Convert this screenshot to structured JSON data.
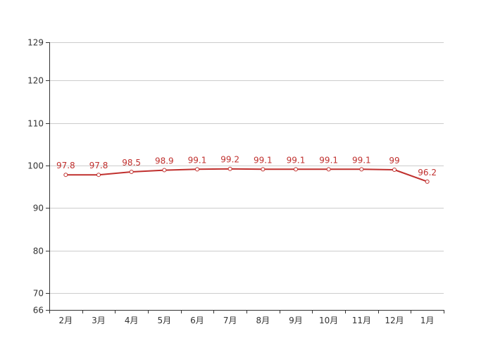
{
  "chart_data": {
    "type": "line",
    "title": "",
    "xlabel": "",
    "ylabel": "",
    "categories": [
      "2月",
      "3月",
      "4月",
      "5月",
      "6月",
      "7月",
      "8月",
      "9月",
      "10月",
      "11月",
      "12月",
      "1月"
    ],
    "series": [
      {
        "values": [
          97.8,
          97.8,
          98.5,
          98.9,
          99.1,
          99.2,
          99.1,
          99.1,
          99.1,
          99.1,
          99,
          96.2
        ],
        "data_labels": [
          "97.8",
          "97.8",
          "98.5",
          "98.9",
          "99.1",
          "99.2",
          "99.1",
          "99.1",
          "99.1",
          "99.1",
          "99",
          "96.2"
        ],
        "color": "#c0302e"
      }
    ],
    "ylim": [
      66,
      129
    ],
    "yticks": [
      66,
      70,
      80,
      90,
      100,
      110,
      120,
      129
    ],
    "ytick_labels": [
      "66",
      "70",
      "80",
      "90",
      "100",
      "110",
      "120",
      "129"
    ],
    "grid": true,
    "legend": "none",
    "colors": {
      "line": "#c0302e",
      "marker_fill": "#ffffff",
      "grid": "#cccccc",
      "axis": "#333333",
      "text": "#333333",
      "label": "#c0302e"
    }
  }
}
